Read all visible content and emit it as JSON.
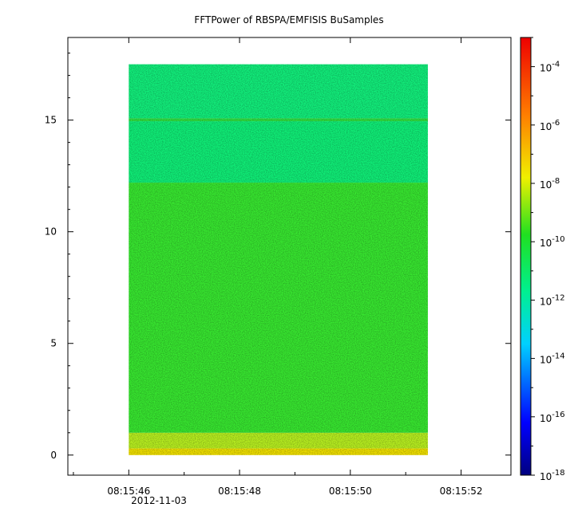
{
  "chart_data": {
    "type": "heatmap",
    "title": "FFTPower of RBSPA/EMFISIS  BuSamples",
    "xlabel": "",
    "ylabel": "",
    "x_time_ticks": [
      "08:15:46",
      "08:15:48",
      "08:15:50",
      "08:15:52"
    ],
    "x_date_label": "2012-11-03",
    "xlim_seconds": [
      44.9,
      52.9
    ],
    "data_x_range_seconds": [
      46.0,
      51.4
    ],
    "y_ticks": [
      0,
      5,
      10,
      15
    ],
    "ylim": [
      -0.9,
      18.7
    ],
    "data_y_range": [
      0,
      17.5
    ],
    "colorbar": {
      "scale": "log",
      "range": [
        1e-18,
        0.001
      ],
      "tick_exponents": [
        -18,
        -16,
        -14,
        -12,
        -10,
        -8,
        -6,
        -4
      ],
      "tick_base": "10",
      "colormap": "rainbow"
    },
    "bands": [
      {
        "y_from": 0.0,
        "y_to": 0.3,
        "power": "1e-8",
        "color": "#f0e000"
      },
      {
        "y_from": 0.3,
        "y_to": 1.0,
        "power": "1e-9",
        "color": "#b8f020"
      },
      {
        "y_from": 1.0,
        "y_to": 12.2,
        "power": "1e-11",
        "color": "#38e830"
      },
      {
        "y_from": 12.2,
        "y_to": 14.95,
        "power": "1e-13",
        "color": "#10f078"
      },
      {
        "y_from": 14.95,
        "y_to": 15.08,
        "power": "1e-11",
        "color": "#30e040"
      },
      {
        "y_from": 15.08,
        "y_to": 17.5,
        "power": "1e-13",
        "color": "#12f07c"
      }
    ]
  }
}
